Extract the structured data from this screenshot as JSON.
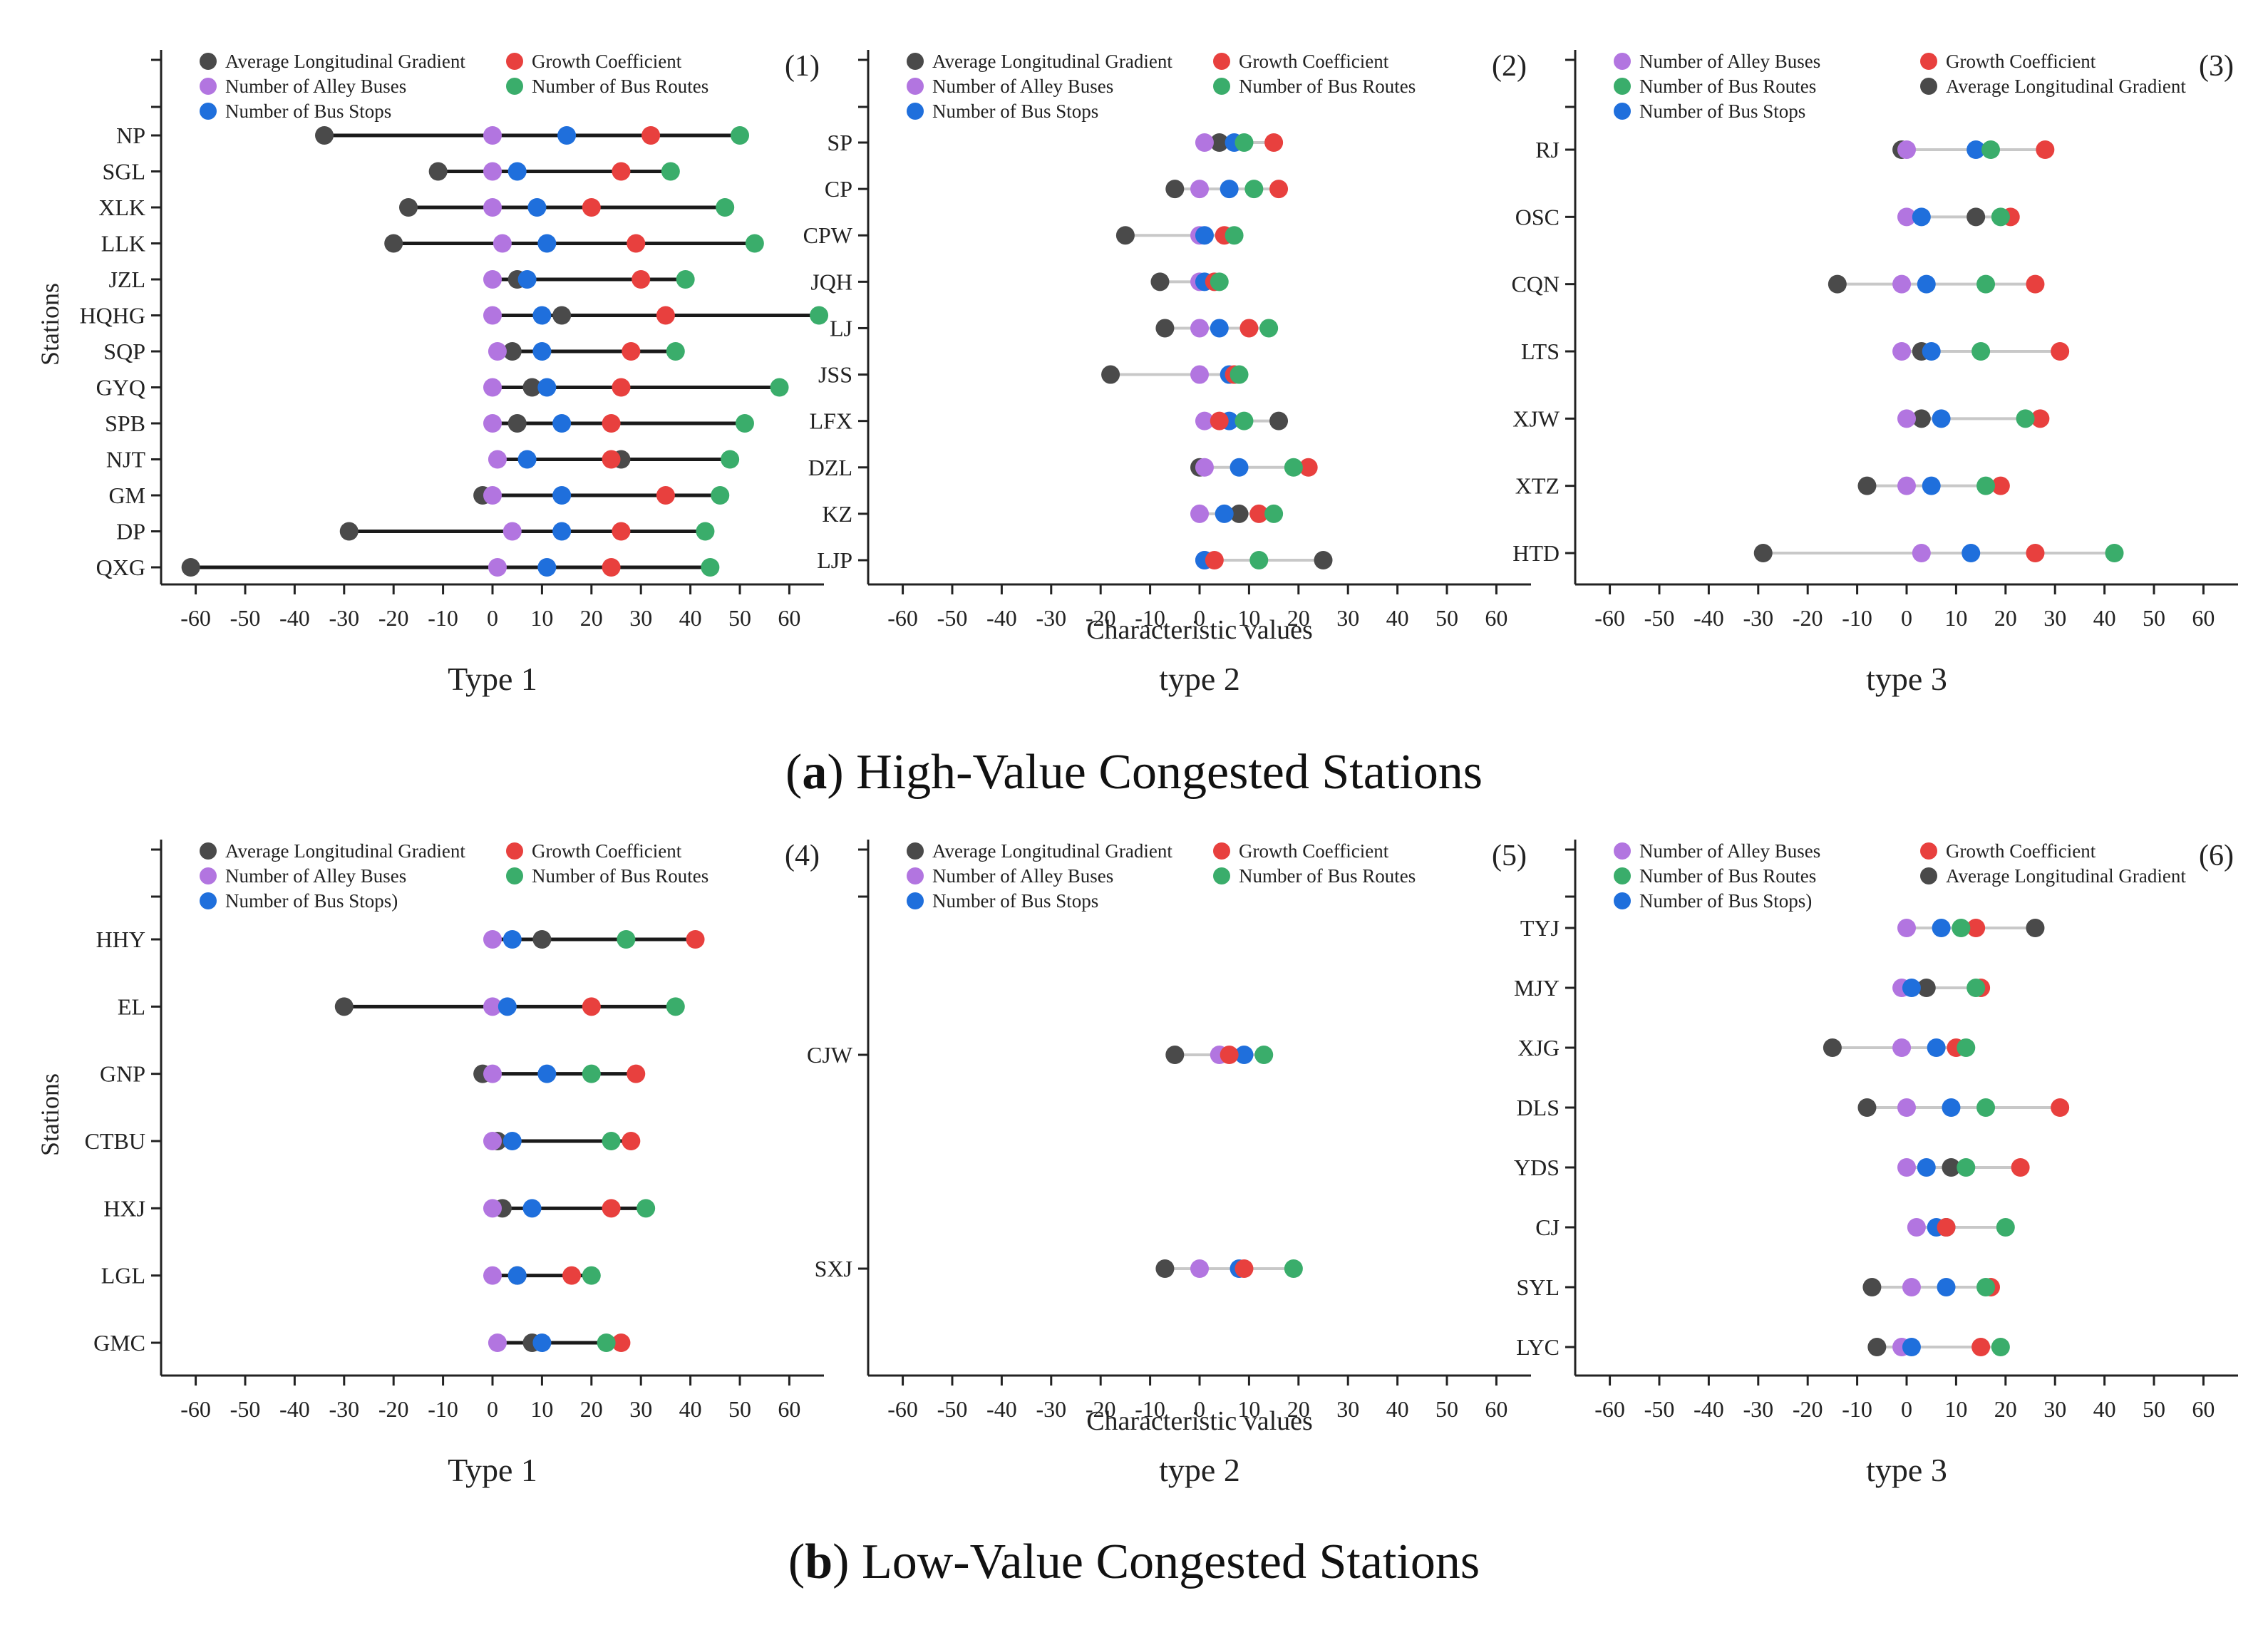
{
  "figure": {
    "section_a": {
      "letter": "a",
      "title": " High-Value Congested Stations"
    },
    "section_b": {
      "letter": "b",
      "title": " Low-Value Congested Stations"
    }
  },
  "colors": {
    "Average Longitudinal Gradient": "#4a4a4a",
    "Growth Coefficient": "#e8403e",
    "Number of Alley Buses": "#b275e0",
    "Number of Bus Routes": "#3aad6b",
    "Number of Bus Stops": "#1f6fdc",
    "Number of Bus Stops)": "#1f6fdc",
    "line_dark": "#1a1a1a",
    "line_light": "#c8c8c8"
  },
  "chart_data": [
    {
      "id": "1",
      "panel_label": "(1)",
      "type": "scatter",
      "title": "Type 1",
      "ylabel": "Stations",
      "xlabel": "",
      "xlim": [
        -67,
        67
      ],
      "xticks": [
        -60,
        -50,
        -40,
        -30,
        -20,
        -10,
        0,
        10,
        20,
        30,
        40,
        50,
        60
      ],
      "legend": [
        "Average Longitudinal Gradient",
        "Growth Coefficient",
        "Number of Alley Buses",
        "Number of Bus Routes",
        "Number of Bus Stops"
      ],
      "line_style": "dark",
      "series_order": [
        "Average Longitudinal Gradient",
        "Number of Alley Buses",
        "Number of Bus Stops",
        "Growth Coefficient",
        "Number of Bus Routes"
      ],
      "categories": [
        "NP",
        "SGL",
        "XLK",
        "LLK",
        "JZL",
        "HQHG",
        "SQP",
        "GYQ",
        "SPB",
        "NJT",
        "GM",
        "DP",
        "QXG"
      ],
      "values": {
        "Average Longitudinal Gradient": [
          -34,
          -11,
          -17,
          -20,
          5,
          14,
          4,
          8,
          5,
          26,
          -2,
          -29,
          -61
        ],
        "Number of Alley Buses": [
          0,
          0,
          0,
          2,
          0,
          0,
          1,
          0,
          0,
          1,
          0,
          4,
          1
        ],
        "Number of Bus Stops": [
          15,
          5,
          9,
          11,
          7,
          10,
          10,
          11,
          14,
          7,
          14,
          14,
          11
        ],
        "Growth Coefficient": [
          32,
          26,
          20,
          29,
          30,
          35,
          28,
          26,
          24,
          24,
          35,
          26,
          24
        ],
        "Number of Bus Routes": [
          50,
          36,
          47,
          53,
          39,
          66,
          37,
          58,
          51,
          48,
          46,
          43,
          44
        ]
      }
    },
    {
      "id": "2",
      "panel_label": "(2)",
      "type": "scatter",
      "title": "type 2",
      "ylabel": "",
      "xlabel": "Characteristic values",
      "xlim": [
        -67,
        67
      ],
      "xticks": [
        -60,
        -50,
        -40,
        -30,
        -20,
        -10,
        0,
        10,
        20,
        30,
        40,
        50,
        60
      ],
      "legend": [
        "Average Longitudinal Gradient",
        "Growth Coefficient",
        "Number of Alley Buses",
        "Number of Bus Routes",
        "Number of Bus Stops"
      ],
      "line_style": "light",
      "series_order": [
        "Average Longitudinal Gradient",
        "Number of Alley Buses",
        "Number of Bus Stops",
        "Growth Coefficient",
        "Number of Bus Routes"
      ],
      "categories": [
        "SP",
        "CP",
        "CPW",
        "JQH",
        "LJ",
        "JSS",
        "LFX",
        "DZL",
        "KZ",
        "LJP"
      ],
      "values": {
        "Average Longitudinal Gradient": [
          4,
          -5,
          -15,
          -8,
          -7,
          -18,
          16,
          0,
          8,
          25
        ],
        "Number of Alley Buses": [
          1,
          0,
          0,
          0,
          0,
          0,
          1,
          1,
          0,
          1
        ],
        "Number of Bus Stops": [
          7,
          6,
          1,
          1,
          4,
          6,
          6,
          8,
          5,
          1
        ],
        "Growth Coefficient": [
          15,
          16,
          5,
          3,
          10,
          7,
          4,
          22,
          12,
          3
        ],
        "Number of Bus Routes": [
          9,
          11,
          7,
          4,
          14,
          8,
          9,
          19,
          15,
          12
        ]
      }
    },
    {
      "id": "3",
      "panel_label": "(3)",
      "type": "scatter",
      "title": "type 3",
      "ylabel": "",
      "xlabel": "",
      "xlim": [
        -67,
        67
      ],
      "xticks": [
        -60,
        -50,
        -40,
        -30,
        -20,
        -10,
        0,
        10,
        20,
        30,
        40,
        50,
        60
      ],
      "legend": [
        "Number of Alley Buses",
        "Growth Coefficient",
        "Number of Bus Routes",
        "Average Longitudinal Gradient",
        "Number of Bus Stops"
      ],
      "line_style": "light",
      "series_order": [
        "Average Longitudinal Gradient",
        "Number of Alley Buses",
        "Number of Bus Stops",
        "Growth Coefficient",
        "Number of Bus Routes"
      ],
      "categories": [
        "RJ",
        "OSC",
        "CQN",
        "LTS",
        "XJW",
        "XTZ",
        "HTD"
      ],
      "values": {
        "Average Longitudinal Gradient": [
          -1,
          14,
          -14,
          3,
          3,
          -8,
          -29
        ],
        "Number of Alley Buses": [
          0,
          0,
          -1,
          -1,
          0,
          0,
          3
        ],
        "Number of Bus Stops": [
          14,
          3,
          4,
          5,
          7,
          5,
          13
        ],
        "Growth Coefficient": [
          28,
          21,
          26,
          31,
          27,
          19,
          26
        ],
        "Number of Bus Routes": [
          17,
          19,
          16,
          15,
          24,
          16,
          42
        ]
      }
    },
    {
      "id": "4",
      "panel_label": "(4)",
      "type": "scatter",
      "title": "Type 1",
      "ylabel": "Stations",
      "xlabel": "",
      "xlim": [
        -67,
        67
      ],
      "xticks": [
        -60,
        -50,
        -40,
        -30,
        -20,
        -10,
        0,
        10,
        20,
        30,
        40,
        50,
        60
      ],
      "legend": [
        "Average Longitudinal Gradient",
        "Growth Coefficient",
        "Number of Alley Buses",
        "Number of Bus Routes",
        "Number of Bus Stops)"
      ],
      "line_style": "dark",
      "series_order": [
        "Average Longitudinal Gradient",
        "Number of Alley Buses",
        "Number of Bus Stops",
        "Growth Coefficient",
        "Number of Bus Routes"
      ],
      "categories": [
        "HHY",
        "EL",
        "GNP",
        "CTBU",
        "HXJ",
        "LGL",
        "GMC"
      ],
      "values": {
        "Average Longitudinal Gradient": [
          10,
          -30,
          -2,
          1,
          2,
          5,
          8
        ],
        "Number of Alley Buses": [
          0,
          0,
          0,
          0,
          0,
          0,
          1
        ],
        "Number of Bus Stops": [
          4,
          3,
          11,
          4,
          8,
          5,
          10
        ],
        "Growth Coefficient": [
          41,
          20,
          29,
          28,
          24,
          16,
          26
        ],
        "Number of Bus Routes": [
          27,
          37,
          20,
          24,
          31,
          20,
          23
        ]
      }
    },
    {
      "id": "5",
      "panel_label": "(5)",
      "type": "scatter",
      "title": "type 2",
      "ylabel": "",
      "xlabel": "Characteristic values",
      "xlim": [
        -67,
        67
      ],
      "xticks": [
        -60,
        -50,
        -40,
        -30,
        -20,
        -10,
        0,
        10,
        20,
        30,
        40,
        50,
        60
      ],
      "legend": [
        "Average Longitudinal Gradient",
        "Growth Coefficient",
        "Number of Alley Buses",
        "Number of Bus Routes",
        "Number of Bus Stops"
      ],
      "line_style": "light",
      "series_order": [
        "Average Longitudinal Gradient",
        "Number of Alley Buses",
        "Number of Bus Stops",
        "Growth Coefficient",
        "Number of Bus Routes"
      ],
      "categories": [
        "CJW",
        "SXJ"
      ],
      "values": {
        "Average Longitudinal Gradient": [
          -5,
          -7
        ],
        "Number of Alley Buses": [
          4,
          0
        ],
        "Number of Bus Stops": [
          9,
          8
        ],
        "Growth Coefficient": [
          6,
          9
        ],
        "Number of Bus Routes": [
          13,
          19
        ]
      }
    },
    {
      "id": "6",
      "panel_label": "(6)",
      "type": "scatter",
      "title": "type 3",
      "ylabel": "",
      "xlabel": "",
      "xlim": [
        -67,
        67
      ],
      "xticks": [
        -60,
        -50,
        -40,
        -30,
        -20,
        -10,
        0,
        10,
        20,
        30,
        40,
        50,
        60
      ],
      "legend": [
        "Number of Alley Buses",
        "Growth Coefficient",
        "Number of Bus Routes",
        "Average Longitudinal Gradient",
        "Number of Bus Stops)"
      ],
      "line_style": "light",
      "series_order": [
        "Average Longitudinal Gradient",
        "Number of Alley Buses",
        "Number of Bus Stops",
        "Growth Coefficient",
        "Number of Bus Routes"
      ],
      "categories": [
        "TYJ",
        "MJY",
        "XJG",
        "DLS",
        "YDS",
        "CJ",
        "SYL",
        "LYC"
      ],
      "values": {
        "Average Longitudinal Gradient": [
          26,
          4,
          -15,
          -8,
          9,
          8,
          -7,
          -6
        ],
        "Number of Alley Buses": [
          0,
          -1,
          -1,
          0,
          0,
          2,
          1,
          -1
        ],
        "Number of Bus Stops": [
          7,
          1,
          6,
          9,
          4,
          6,
          8,
          1
        ],
        "Growth Coefficient": [
          14,
          15,
          10,
          31,
          23,
          8,
          17,
          15
        ],
        "Number of Bus Routes": [
          11,
          14,
          12,
          16,
          12,
          20,
          16,
          19
        ]
      }
    }
  ]
}
